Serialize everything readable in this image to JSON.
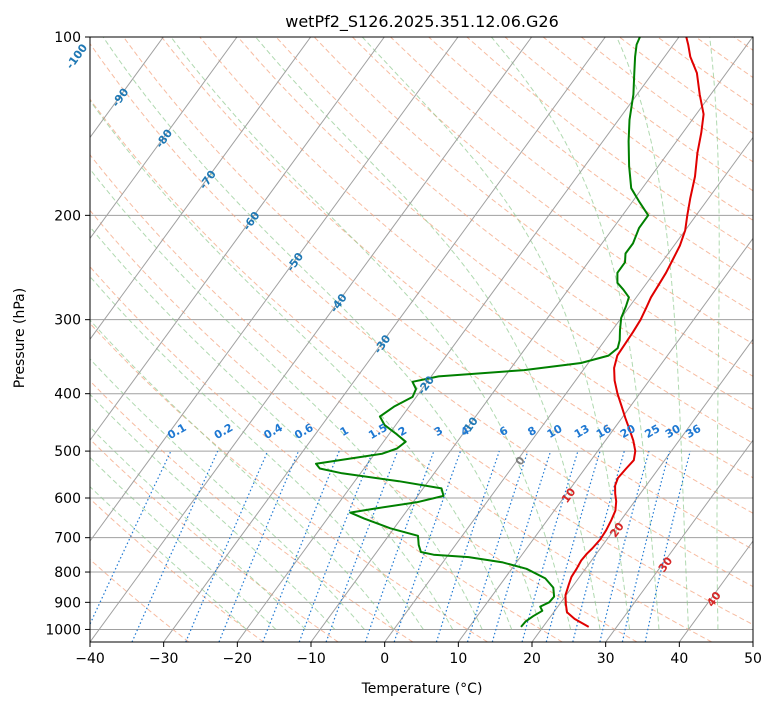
{
  "chart_data": {
    "type": "line",
    "title": "wetPf2_S126.2025.351.12.06.G26",
    "xlabel": "Temperature (°C)",
    "ylabel": "Pressure (hPa)",
    "xlim": [
      -40,
      50
    ],
    "ylim": [
      1050,
      100
    ],
    "y_scale": "log",
    "grid": true,
    "x_ticks": [
      -40,
      -30,
      -20,
      -10,
      0,
      10,
      20,
      30,
      40,
      50
    ],
    "y_ticks": [
      100,
      200,
      300,
      400,
      500,
      600,
      700,
      800,
      900,
      1000
    ],
    "x_tick_labels": [
      "−40",
      "−30",
      "−20",
      "−10",
      "0",
      "10",
      "20",
      "30",
      "40",
      "50"
    ],
    "y_tick_labels": [
      "100",
      "200",
      "300",
      "400",
      "500",
      "600",
      "700",
      "800",
      "900",
      "1000"
    ],
    "series": [
      {
        "color": "#e00000",
        "points": [
          [
            26.2,
            990
          ],
          [
            23.5,
            960
          ],
          [
            21.8,
            935
          ],
          [
            20.8,
            905
          ],
          [
            19.9,
            875
          ],
          [
            19.3,
            840
          ],
          [
            18.9,
            815
          ],
          [
            18.8,
            790
          ],
          [
            18.6,
            765
          ],
          [
            18.7,
            745
          ],
          [
            18.9,
            730
          ],
          [
            19.1,
            705
          ],
          [
            19.0,
            680
          ],
          [
            18.7,
            655
          ],
          [
            18.3,
            630
          ],
          [
            17.5,
            608
          ],
          [
            16.6,
            590
          ],
          [
            15.8,
            572
          ],
          [
            15.4,
            555
          ],
          [
            15.6,
            535
          ],
          [
            15.8,
            518
          ],
          [
            15.1,
            500
          ],
          [
            13.8,
            480
          ],
          [
            12.2,
            460
          ],
          [
            10.5,
            440
          ],
          [
            8.8,
            420
          ],
          [
            7.0,
            400
          ],
          [
            5.3,
            380
          ],
          [
            4.0,
            362
          ],
          [
            3.2,
            345
          ],
          [
            3.1,
            330
          ],
          [
            3.0,
            315
          ],
          [
            2.8,
            300
          ],
          [
            2.4,
            287
          ],
          [
            2.0,
            275
          ],
          [
            1.8,
            262
          ],
          [
            1.6,
            250
          ],
          [
            1.2,
            237
          ],
          [
            0.8,
            225
          ],
          [
            0.0,
            212
          ],
          [
            -1.2,
            200
          ],
          [
            -2.5,
            187
          ],
          [
            -4.0,
            172
          ],
          [
            -6.0,
            157
          ],
          [
            -7.5,
            145
          ],
          [
            -9.0,
            135
          ],
          [
            -11.5,
            125
          ],
          [
            -14.0,
            115
          ],
          [
            -16.5,
            108
          ],
          [
            -18.0,
            103
          ],
          [
            -19.0,
            100
          ]
        ]
      },
      {
        "color": "#008000",
        "points": [
          [
            17.0,
            990
          ],
          [
            17.1,
            970
          ],
          [
            17.6,
            950
          ],
          [
            18.3,
            930
          ],
          [
            17.6,
            915
          ],
          [
            18.4,
            900
          ],
          [
            18.5,
            880
          ],
          [
            17.5,
            850
          ],
          [
            15.5,
            820
          ],
          [
            12.0,
            790
          ],
          [
            8.0,
            770
          ],
          [
            3.0,
            755
          ],
          [
            -2.0,
            748
          ],
          [
            -4.0,
            740
          ],
          [
            -5.0,
            720
          ],
          [
            -6.0,
            695
          ],
          [
            -10.5,
            675
          ],
          [
            -15.0,
            650
          ],
          [
            -17.5,
            635
          ],
          [
            -14.5,
            625
          ],
          [
            -9.5,
            610
          ],
          [
            -6.5,
            595
          ],
          [
            -7.5,
            578
          ],
          [
            -14.0,
            562
          ],
          [
            -22.5,
            545
          ],
          [
            -26.0,
            535
          ],
          [
            -27.0,
            525
          ],
          [
            -23.0,
            515
          ],
          [
            -19.0,
            505
          ],
          [
            -17.5,
            495
          ],
          [
            -17.0,
            482
          ],
          [
            -19.0,
            468
          ],
          [
            -21.5,
            452
          ],
          [
            -23.0,
            437
          ],
          [
            -22.0,
            420
          ],
          [
            -20.5,
            405
          ],
          [
            -20.8,
            393
          ],
          [
            -22.0,
            382
          ],
          [
            -19.0,
            374
          ],
          [
            -8.0,
            365
          ],
          [
            -1.0,
            355
          ],
          [
            2.0,
            345
          ],
          [
            2.5,
            335
          ],
          [
            2.0,
            325
          ],
          [
            1.0,
            312
          ],
          [
            0.0,
            298
          ],
          [
            -0.5,
            285
          ],
          [
            -1.0,
            275
          ],
          [
            -2.5,
            267
          ],
          [
            -4.0,
            260
          ],
          [
            -5.0,
            250
          ],
          [
            -5.0,
            240
          ],
          [
            -5.8,
            232
          ],
          [
            -5.8,
            223
          ],
          [
            -6.5,
            210
          ],
          [
            -6.5,
            200
          ],
          [
            -9.0,
            190
          ],
          [
            -11.5,
            180
          ],
          [
            -14.0,
            165
          ],
          [
            -16.5,
            150
          ],
          [
            -18.5,
            138
          ],
          [
            -20.5,
            125
          ],
          [
            -22.5,
            115
          ],
          [
            -24.0,
            108
          ],
          [
            -25.0,
            103
          ],
          [
            -25.3,
            100
          ]
        ]
      }
    ],
    "isotherm_labels": [
      "-100",
      "-90",
      "-80",
      "-70",
      "-60",
      "-50",
      "-40",
      "-30",
      "-20",
      "-10",
      "0",
      "10",
      "20",
      "30",
      "40"
    ],
    "mixing_ratio_labels": [
      "0.1",
      "0.2",
      "0.4",
      "0.6",
      "1",
      "1.5",
      "2",
      "3",
      "4",
      "6",
      "8",
      "10",
      "13",
      "16",
      "20",
      "25",
      "30",
      "36"
    ],
    "colors": {
      "temperature": "#e00000",
      "dewpoint": "#008000",
      "dry_adiabat": "#f4a582",
      "moist_adiabat": "#8fc98f",
      "mixing_ratio": "#1e78d2",
      "isotherm": "#a0a0a0",
      "isotherm_label_cold": "#1f78b4",
      "isotherm_label_warm": "#d62728",
      "isotherm_label_zero": "#808080"
    }
  }
}
